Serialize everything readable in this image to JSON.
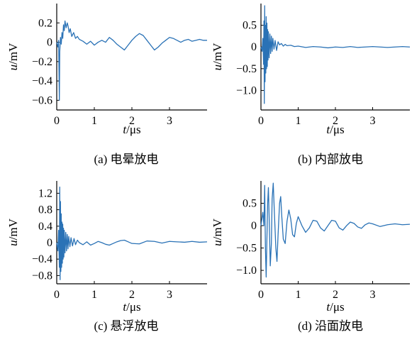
{
  "chart_data": [
    {
      "type": "line",
      "caption": "(a)  电晕放电",
      "xlabel": "t/μs",
      "ylabel": "u/mV",
      "xlim": [
        0,
        4
      ],
      "ylim": [
        -0.7,
        0.4
      ],
      "xticks": [
        0,
        1,
        2,
        3
      ],
      "yticks": [
        0.2,
        0,
        -0.2,
        -0.4,
        -0.6
      ],
      "color": "#2a72b6",
      "series": [
        {
          "x": [
            0,
            0.03,
            0.05,
            0.07,
            0.08,
            0.1,
            0.12,
            0.14,
            0.16,
            0.18,
            0.2,
            0.22,
            0.25,
            0.28,
            0.3,
            0.33,
            0.36,
            0.4,
            0.45,
            0.5,
            0.55,
            0.6,
            0.7,
            0.8,
            0.9,
            1.0,
            1.1,
            1.2,
            1.3,
            1.4,
            1.5,
            1.6,
            1.7,
            1.8,
            1.9,
            2.0,
            2.1,
            2.2,
            2.3,
            2.4,
            2.5,
            2.6,
            2.7,
            2.8,
            2.9,
            3.0,
            3.1,
            3.2,
            3.3,
            3.4,
            3.5,
            3.6,
            3.7,
            3.8,
            3.9,
            4.0
          ],
          "y": [
            0,
            -0.05,
            0.02,
            -0.6,
            -0.1,
            0.05,
            -0.02,
            0.1,
            0.04,
            0.18,
            0.12,
            0.22,
            0.15,
            0.2,
            0.17,
            0.1,
            0.14,
            0.06,
            0.1,
            0.04,
            0.06,
            0.03,
            0.01,
            -0.02,
            0.01,
            -0.03,
            0.0,
            0.02,
            0.0,
            0.05,
            0.02,
            -0.02,
            -0.05,
            -0.08,
            -0.03,
            0.02,
            0.06,
            0.09,
            0.07,
            0.02,
            -0.03,
            -0.08,
            -0.05,
            -0.01,
            0.02,
            0.05,
            0.04,
            0.02,
            0.0,
            0.02,
            0.03,
            0.01,
            0.02,
            0.03,
            0.02,
            0.02
          ]
        }
      ]
    },
    {
      "type": "line",
      "caption": "(b)  内部放电",
      "xlabel": "t/μs",
      "ylabel": "u/mV",
      "xlim": [
        0,
        4
      ],
      "ylim": [
        -1.45,
        1.0
      ],
      "xticks": [
        0,
        1,
        2,
        3
      ],
      "yticks": [
        0.5,
        0,
        -0.5,
        -1.0
      ],
      "color": "#2a72b6",
      "series": [
        {
          "x": [
            0,
            0.03,
            0.05,
            0.07,
            0.08,
            0.09,
            0.1,
            0.11,
            0.12,
            0.13,
            0.14,
            0.15,
            0.16,
            0.17,
            0.18,
            0.19,
            0.2,
            0.22,
            0.24,
            0.26,
            0.28,
            0.3,
            0.32,
            0.35,
            0.38,
            0.42,
            0.46,
            0.5,
            0.55,
            0.6,
            0.65,
            0.7,
            0.8,
            0.9,
            1.0,
            1.2,
            1.4,
            1.6,
            1.8,
            2.0,
            2.2,
            2.4,
            2.6,
            2.8,
            3.0,
            3.2,
            3.4,
            3.6,
            3.8,
            4.0
          ],
          "y": [
            0,
            -0.1,
            0.2,
            -0.4,
            0.6,
            -1.3,
            0.95,
            -0.8,
            0.5,
            -0.6,
            0.7,
            -0.5,
            0.55,
            -0.45,
            0.4,
            -0.3,
            0.35,
            -0.25,
            0.3,
            -0.15,
            0.25,
            -0.1,
            0.2,
            -0.05,
            0.15,
            -0.08,
            0.12,
            0.05,
            0.08,
            0.02,
            0.06,
            0.03,
            0.04,
            0.01,
            0.02,
            -0.01,
            0.01,
            0.0,
            -0.02,
            0.0,
            -0.01,
            0.01,
            -0.01,
            0.0,
            0.01,
            0.0,
            -0.01,
            0.0,
            0.01,
            0.0
          ]
        }
      ]
    },
    {
      "type": "line",
      "caption": "(c)  悬浮放电",
      "xlabel": "t/μs",
      "ylabel": "u/mV",
      "xlim": [
        0,
        4
      ],
      "ylim": [
        -1.0,
        1.5
      ],
      "xticks": [
        0,
        1,
        2,
        3
      ],
      "yticks": [
        1.2,
        0.8,
        0.4,
        0,
        -0.4,
        -0.8
      ],
      "color": "#2a72b6",
      "series": [
        {
          "x": [
            0,
            0.03,
            0.05,
            0.07,
            0.08,
            0.09,
            0.1,
            0.11,
            0.12,
            0.13,
            0.14,
            0.15,
            0.16,
            0.17,
            0.18,
            0.19,
            0.2,
            0.22,
            0.24,
            0.26,
            0.28,
            0.3,
            0.32,
            0.35,
            0.38,
            0.42,
            0.46,
            0.5,
            0.55,
            0.6,
            0.7,
            0.8,
            0.9,
            1.0,
            1.1,
            1.2,
            1.3,
            1.4,
            1.5,
            1.6,
            1.7,
            1.8,
            1.9,
            2.0,
            2.2,
            2.4,
            2.6,
            2.8,
            3.0,
            3.2,
            3.4,
            3.6,
            3.8,
            4.0
          ],
          "y": [
            0,
            -0.2,
            0.3,
            -0.6,
            1.35,
            -0.9,
            1.0,
            -0.7,
            0.7,
            -0.6,
            0.5,
            -0.5,
            0.45,
            -0.4,
            0.35,
            -0.35,
            0.3,
            -0.25,
            0.25,
            -0.2,
            0.2,
            -0.15,
            0.15,
            -0.1,
            0.12,
            -0.08,
            0.1,
            -0.05,
            0.06,
            0.0,
            -0.05,
            0.02,
            -0.06,
            -0.02,
            0.03,
            0.0,
            -0.04,
            -0.06,
            -0.02,
            0.02,
            0.05,
            0.06,
            0.02,
            -0.02,
            -0.03,
            0.04,
            0.03,
            -0.01,
            0.03,
            0.02,
            0.01,
            0.03,
            0.01,
            0.02
          ]
        }
      ]
    },
    {
      "type": "line",
      "caption": "(d)  沿面放电",
      "xlabel": "t/μs",
      "ylabel": "u/mV",
      "xlim": [
        0,
        4
      ],
      "ylim": [
        -1.3,
        1.0
      ],
      "xticks": [
        0,
        1,
        2,
        3
      ],
      "yticks": [
        0.5,
        0,
        -0.5,
        -1.0
      ],
      "color": "#2a72b6",
      "series": [
        {
          "x": [
            0,
            0.05,
            0.08,
            0.1,
            0.12,
            0.14,
            0.16,
            0.18,
            0.2,
            0.22,
            0.25,
            0.28,
            0.3,
            0.33,
            0.36,
            0.4,
            0.43,
            0.46,
            0.5,
            0.53,
            0.56,
            0.6,
            0.65,
            0.7,
            0.75,
            0.8,
            0.85,
            0.9,
            0.95,
            1.0,
            1.1,
            1.2,
            1.3,
            1.4,
            1.5,
            1.6,
            1.7,
            1.8,
            1.9,
            2.0,
            2.1,
            2.2,
            2.3,
            2.4,
            2.5,
            2.6,
            2.7,
            2.8,
            2.9,
            3.0,
            3.2,
            3.4,
            3.6,
            3.8,
            4.0
          ],
          "y": [
            0,
            0.3,
            0.0,
            0.9,
            -0.5,
            -1.15,
            -0.3,
            0.5,
            0.85,
            0.2,
            -0.9,
            -0.4,
            0.6,
            0.95,
            0.3,
            -0.5,
            -0.8,
            -0.2,
            0.5,
            0.65,
            0.2,
            -0.3,
            -0.4,
            0.1,
            0.35,
            0.15,
            -0.2,
            -0.25,
            0.05,
            0.2,
            0.0,
            -0.15,
            -0.05,
            0.12,
            0.1,
            -0.05,
            -0.12,
            0.0,
            0.12,
            0.1,
            -0.05,
            -0.1,
            0.0,
            0.08,
            0.05,
            -0.03,
            -0.06,
            0.02,
            0.06,
            0.04,
            -0.02,
            0.02,
            0.04,
            0.02,
            0.03
          ]
        }
      ]
    }
  ]
}
